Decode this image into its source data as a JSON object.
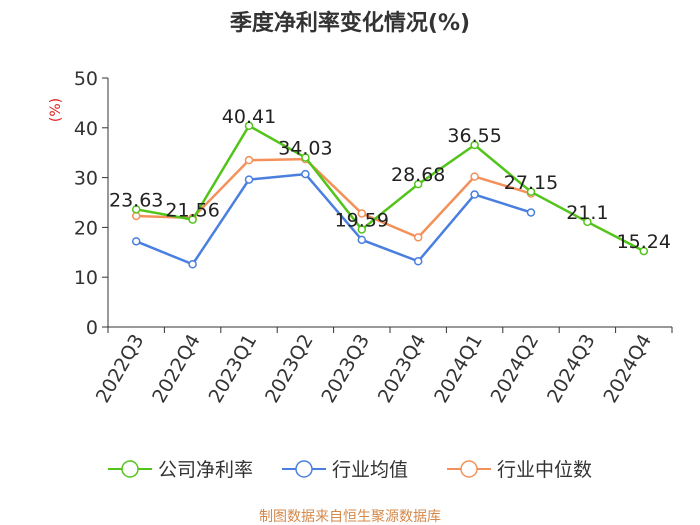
{
  "chart_data": {
    "type": "line",
    "title": "季度净利率变化情况(%)",
    "ylabel": "(%)",
    "xlabel": "",
    "ylim": [
      0,
      50
    ],
    "yticks": [
      0,
      10,
      20,
      30,
      40,
      50
    ],
    "grid": false,
    "legend_position": "bottom",
    "categories": [
      "2022Q3",
      "2022Q4",
      "2023Q1",
      "2023Q2",
      "2023Q3",
      "2023Q4",
      "2024Q1",
      "2024Q2",
      "2024Q3",
      "2024Q4"
    ],
    "series": [
      {
        "name": "公司净利率",
        "color": "#52c41a",
        "values": [
          23.63,
          21.56,
          40.41,
          34.03,
          19.59,
          28.68,
          36.55,
          27.15,
          21.1,
          15.24
        ],
        "labels": [
          "23.63",
          "21.56",
          "40.41",
          "34.03",
          "19.59",
          "28.68",
          "36.55",
          "27.15",
          "21.1",
          "15.24"
        ]
      },
      {
        "name": "行业均值",
        "color": "#4a7fe0",
        "values": [
          17.2,
          12.6,
          29.6,
          30.7,
          17.5,
          13.2,
          26.6,
          23.0,
          null,
          null
        ]
      },
      {
        "name": "行业中位数",
        "color": "#f4915b",
        "values": [
          22.3,
          21.9,
          33.5,
          33.7,
          22.8,
          18.0,
          30.2,
          26.8,
          null,
          null
        ]
      }
    ]
  },
  "source": "制图数据来自恒生聚源数据库"
}
